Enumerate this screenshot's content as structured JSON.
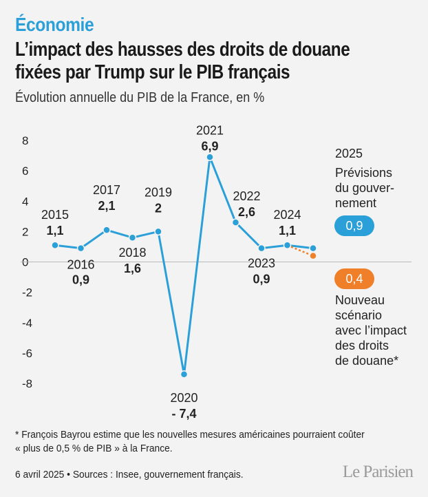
{
  "header": {
    "kicker": "Économie",
    "title": "L’impact des hausses des droits de douane fixées par Trump sur le PIB français",
    "subtitle": "Évolution annuelle du PIB de la France, en %"
  },
  "chart_data": {
    "type": "line",
    "x": [
      2015,
      2016,
      2017,
      2018,
      2019,
      2020,
      2021,
      2022,
      2023,
      2024,
      2025
    ],
    "series": [
      {
        "values": [
          1.1,
          0.9,
          2.1,
          1.6,
          2.0,
          -7.4,
          6.9,
          2.6,
          0.9,
          1.1,
          0.9
        ],
        "color": "#2a9fd8"
      },
      {
        "x": [
          2024,
          2025
        ],
        "values": [
          1.1,
          0.4
        ],
        "color": "#f07f2a",
        "dashed": true
      }
    ],
    "year_labels": [
      "2015",
      "2016",
      "2017",
      "2018",
      "2019",
      "2020",
      "2021",
      "2022",
      "2023",
      "2024"
    ],
    "value_labels": [
      "1,1",
      "0,9",
      "2,1",
      "1,6",
      "2",
      "- 7,4",
      "6,9",
      "2,6",
      "0,9",
      "1,1"
    ],
    "yticks": [
      8,
      6,
      4,
      2,
      0,
      -2,
      -4,
      -6,
      -8
    ],
    "ytick_labels": [
      "8",
      "6",
      "4",
      "2",
      "0",
      "-2",
      "-4",
      "-6",
      "-8"
    ],
    "ylim": [
      -8,
      8
    ],
    "grid": "zero-line-only",
    "annotations": {
      "year_2025": "2025",
      "forecast_lines": [
        "Prévisions",
        "du gouver-",
        "nement"
      ],
      "forecast_value": "0,9",
      "scenario_value": "0,4",
      "scenario_lines": [
        "Nouveau",
        "scénario",
        "avec l’impact",
        "des droits",
        "de douane*"
      ]
    }
  },
  "footnote": {
    "line1": "* François Bayrou estime que les nouvelles mesures américaines pourraient coûter",
    "line2": "« plus de 0,5 % de PIB » à la France."
  },
  "footer": {
    "source": "6 avril 2025 • Sources : Insee, gouvernement français.",
    "logo": "Le Parisien"
  }
}
